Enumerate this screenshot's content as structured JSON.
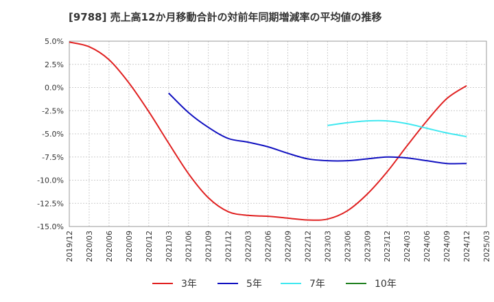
{
  "chart_data": {
    "type": "line",
    "title": "[9788]  売上高12か月移動合計の対前年同期増減率の平均値の推移",
    "xlabel": "",
    "ylabel": "",
    "ylim": [
      -15.0,
      5.0
    ],
    "yticks": [
      "5.0%",
      "2.5%",
      "0.0%",
      "-2.5%",
      "-5.0%",
      "-7.5%",
      "-10.0%",
      "-12.5%",
      "-15.0%"
    ],
    "ytick_values": [
      5.0,
      2.5,
      0.0,
      -2.5,
      -5.0,
      -7.5,
      -10.0,
      -12.5,
      -15.0
    ],
    "xticks": [
      "2019/12",
      "2020/03",
      "2020/06",
      "2020/09",
      "2020/12",
      "2021/03",
      "2021/06",
      "2021/09",
      "2021/12",
      "2022/03",
      "2022/06",
      "2022/09",
      "2022/12",
      "2023/03",
      "2023/06",
      "2023/09",
      "2023/12",
      "2024/03",
      "2024/06",
      "2024/09",
      "2024/12",
      "2025/03"
    ],
    "grid": true,
    "legend_position": "bottom",
    "series": [
      {
        "name": "3年",
        "color": "#e02020",
        "points": [
          [
            "2019/12",
            4.9
          ],
          [
            "2020/03",
            4.4
          ],
          [
            "2020/06",
            3.0
          ],
          [
            "2020/09",
            0.5
          ],
          [
            "2020/12",
            -2.6
          ],
          [
            "2021/03",
            -6.0
          ],
          [
            "2021/06",
            -9.3
          ],
          [
            "2021/09",
            -11.9
          ],
          [
            "2021/12",
            -13.4
          ],
          [
            "2022/03",
            -13.8
          ],
          [
            "2022/06",
            -13.9
          ],
          [
            "2022/09",
            -14.1
          ],
          [
            "2022/12",
            -14.3
          ],
          [
            "2023/03",
            -14.2
          ],
          [
            "2023/06",
            -13.3
          ],
          [
            "2023/09",
            -11.5
          ],
          [
            "2023/12",
            -9.1
          ],
          [
            "2024/03",
            -6.3
          ],
          [
            "2024/06",
            -3.6
          ],
          [
            "2024/09",
            -1.2
          ],
          [
            "2024/12",
            0.2
          ]
        ]
      },
      {
        "name": "5年",
        "color": "#1010c0",
        "points": [
          [
            "2021/03",
            -0.6
          ],
          [
            "2021/06",
            -2.7
          ],
          [
            "2021/09",
            -4.3
          ],
          [
            "2021/12",
            -5.5
          ],
          [
            "2022/03",
            -5.9
          ],
          [
            "2022/06",
            -6.4
          ],
          [
            "2022/09",
            -7.1
          ],
          [
            "2022/12",
            -7.7
          ],
          [
            "2023/03",
            -7.9
          ],
          [
            "2023/06",
            -7.9
          ],
          [
            "2023/09",
            -7.7
          ],
          [
            "2023/12",
            -7.5
          ],
          [
            "2024/03",
            -7.6
          ],
          [
            "2024/06",
            -7.9
          ],
          [
            "2024/09",
            -8.2
          ],
          [
            "2024/12",
            -8.2
          ]
        ]
      },
      {
        "name": "7年",
        "color": "#40e8f0",
        "points": [
          [
            "2023/03",
            -4.1
          ],
          [
            "2023/06",
            -3.8
          ],
          [
            "2023/09",
            -3.6
          ],
          [
            "2023/12",
            -3.6
          ],
          [
            "2024/03",
            -3.9
          ],
          [
            "2024/06",
            -4.4
          ],
          [
            "2024/09",
            -4.9
          ],
          [
            "2024/12",
            -5.3
          ]
        ]
      },
      {
        "name": "10年",
        "color": "#208020",
        "points": []
      }
    ]
  }
}
